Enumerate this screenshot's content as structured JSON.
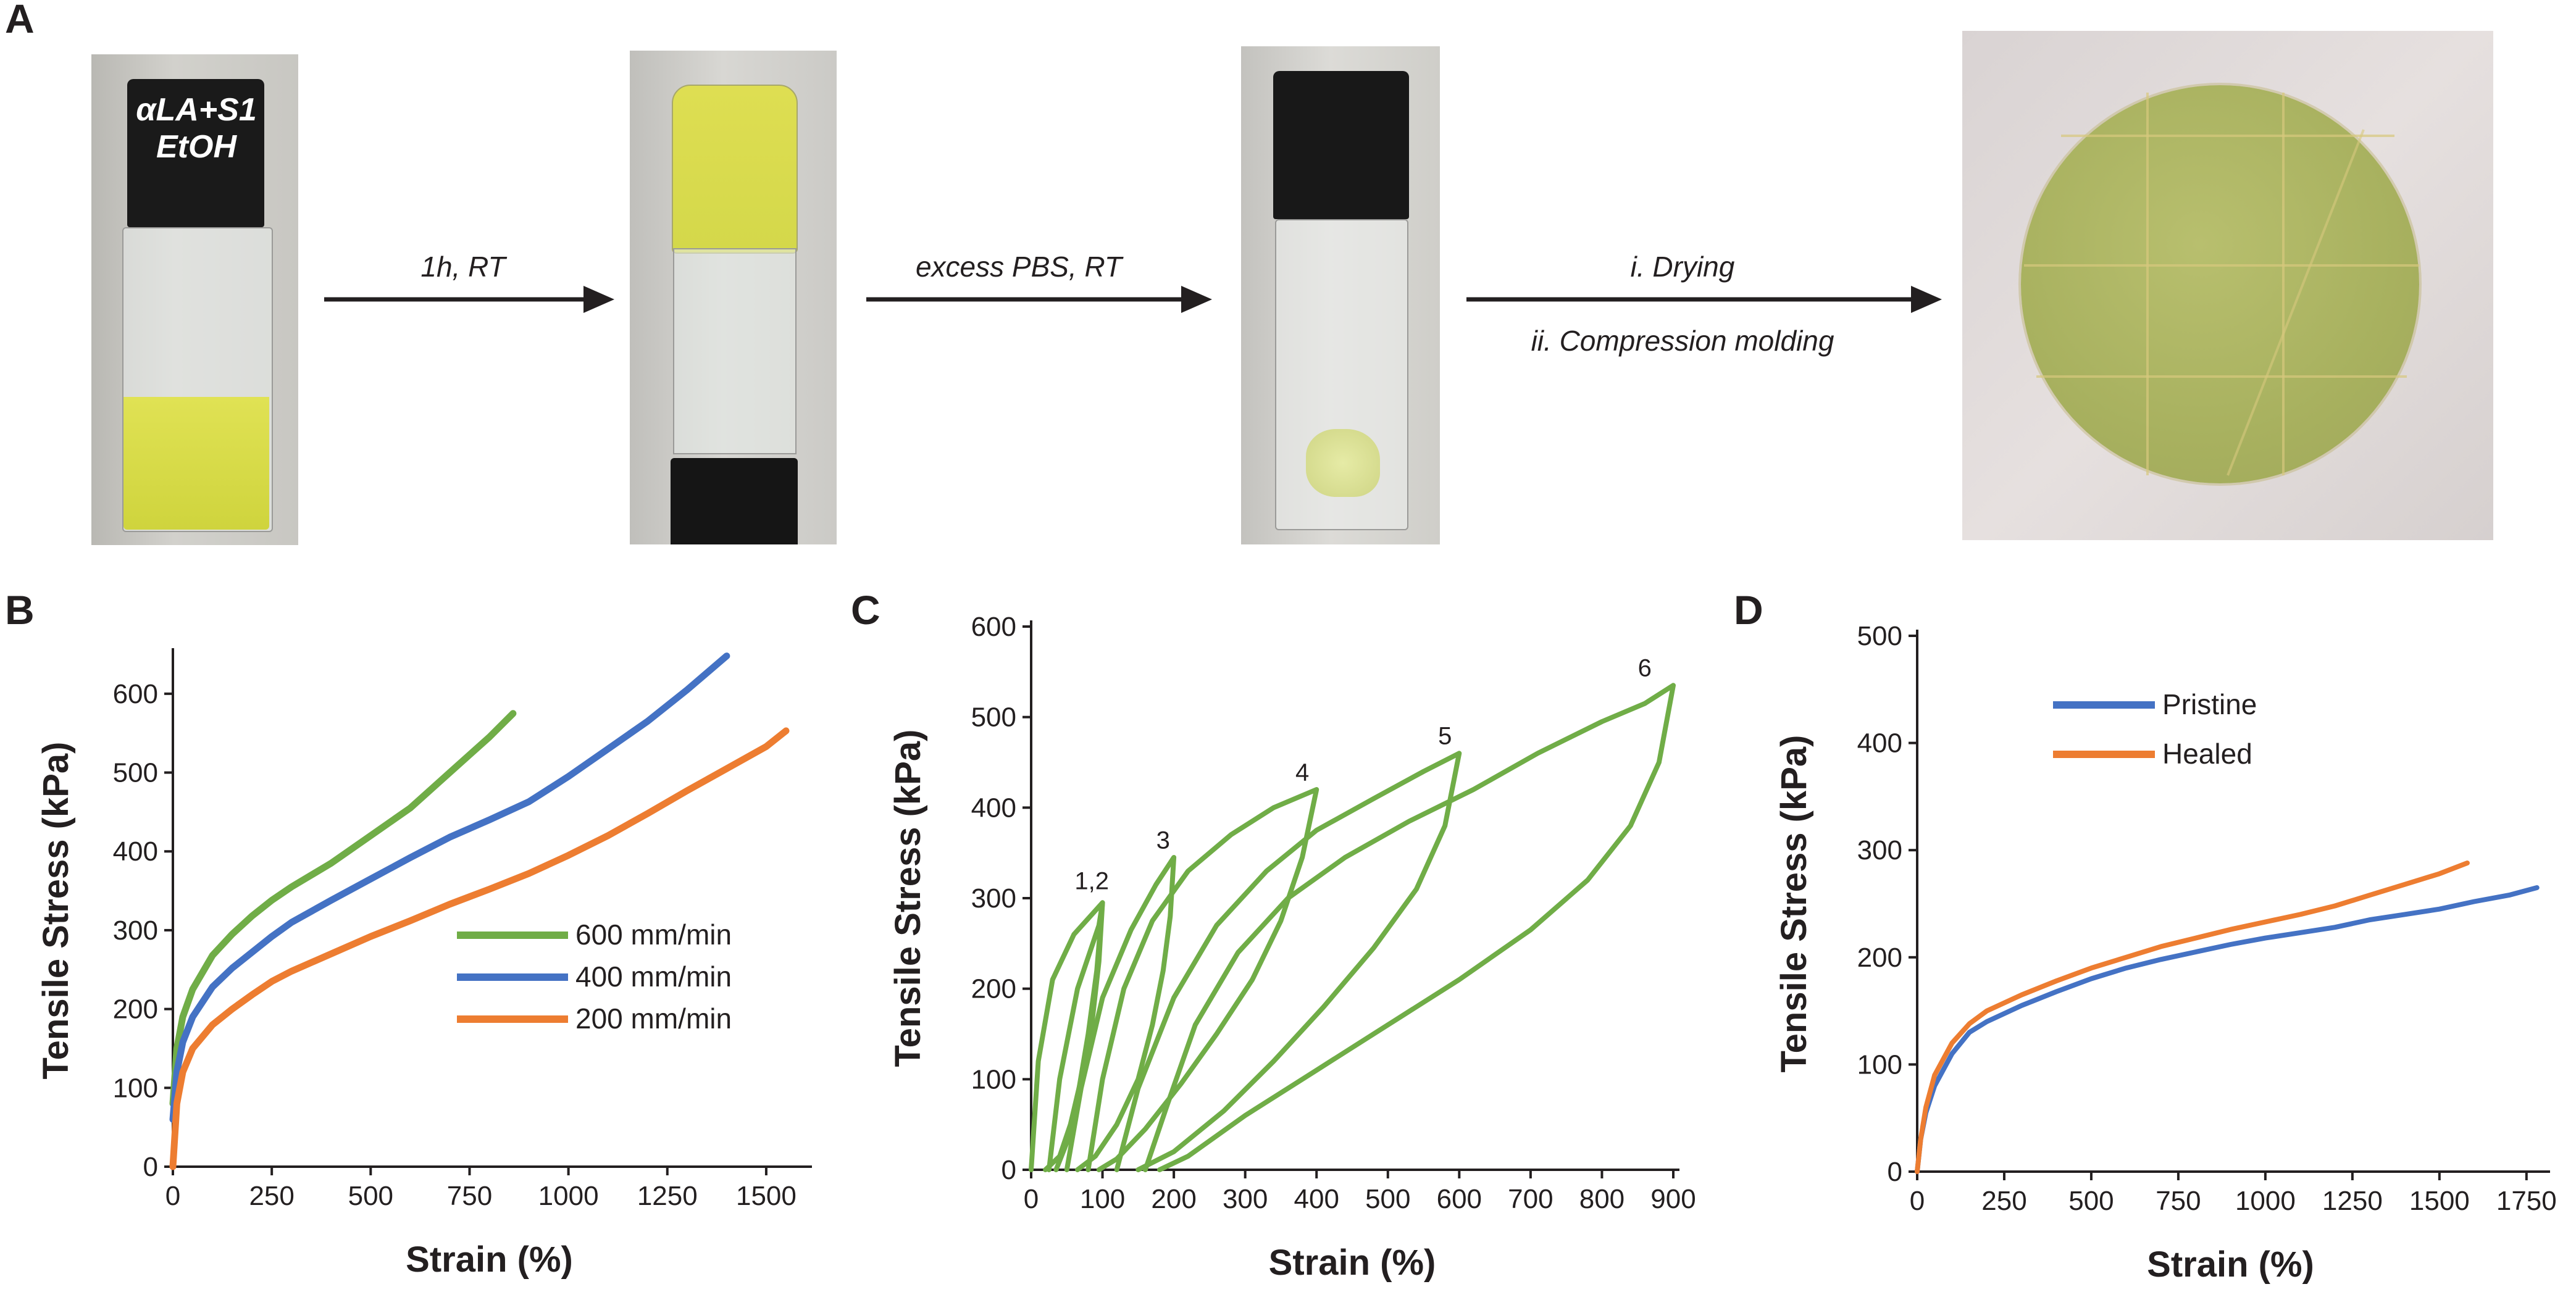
{
  "panels": {
    "a": {
      "letter": "A",
      "vial_label_line1": "αLA+S1",
      "vial_label_line2": "EtOH",
      "step1": "1h, RT",
      "step2": "excess PBS, RT",
      "step3_line1": "i. Drying",
      "step3_line2": "ii. Compression molding"
    },
    "b": {
      "letter": "B"
    },
    "c": {
      "letter": "C"
    },
    "d": {
      "letter": "D"
    }
  },
  "colors": {
    "green": "#70ad47",
    "blue": "#4472c4",
    "orange": "#ed7d31",
    "axis": "#231f20"
  },
  "chart_data": [
    {
      "type": "line",
      "xlabel": "Strain (%)",
      "ylabel": "Tensile Stress (kPa)",
      "xlim": [
        0,
        1600
      ],
      "ylim": [
        0,
        650
      ],
      "xticks": [
        0,
        250,
        500,
        750,
        1000,
        1250,
        1500
      ],
      "yticks": [
        0,
        100,
        200,
        300,
        400,
        500,
        600
      ],
      "legend_position": "center-right",
      "series": [
        {
          "name": "600 mm/min",
          "color": "#70ad47",
          "x": [
            0,
            10,
            25,
            50,
            100,
            150,
            200,
            250,
            300,
            400,
            500,
            600,
            700,
            800,
            860
          ],
          "y": [
            80,
            150,
            190,
            225,
            268,
            295,
            318,
            338,
            355,
            385,
            420,
            455,
            500,
            545,
            575
          ]
        },
        {
          "name": "400 mm/min",
          "color": "#4472c4",
          "x": [
            0,
            10,
            25,
            50,
            100,
            150,
            200,
            250,
            300,
            400,
            500,
            600,
            700,
            800,
            900,
            1000,
            1100,
            1200,
            1300,
            1400
          ],
          "y": [
            60,
            120,
            158,
            190,
            228,
            252,
            272,
            292,
            310,
            338,
            365,
            392,
            418,
            440,
            463,
            495,
            530,
            565,
            605,
            648
          ]
        },
        {
          "name": "200 mm/min",
          "color": "#ed7d31",
          "x": [
            0,
            5,
            10,
            25,
            50,
            100,
            150,
            200,
            250,
            300,
            400,
            500,
            600,
            700,
            800,
            900,
            1000,
            1100,
            1200,
            1300,
            1400,
            1500,
            1550
          ],
          "y": [
            0,
            40,
            80,
            120,
            150,
            180,
            200,
            218,
            235,
            248,
            270,
            292,
            312,
            333,
            352,
            372,
            395,
            420,
            448,
            477,
            505,
            533,
            553
          ]
        }
      ]
    },
    {
      "type": "line",
      "xlabel": "Strain (%)",
      "ylabel": "Tensile Stress (kPa)",
      "xlim": [
        0,
        900
      ],
      "ylim": [
        0,
        600
      ],
      "xticks": [
        0,
        100,
        200,
        300,
        400,
        500,
        600,
        700,
        800,
        900
      ],
      "yticks": [
        0,
        100,
        200,
        300,
        400,
        500,
        600
      ],
      "annotations": [
        "1,2",
        "3",
        "4",
        "5",
        "6"
      ],
      "series": [
        {
          "label": "1",
          "color": "#70ad47",
          "x": [
            0,
            10,
            30,
            60,
            100,
            95,
            85,
            70,
            55,
            40,
            20
          ],
          "y": [
            0,
            120,
            210,
            260,
            295,
            230,
            160,
            100,
            50,
            15,
            0
          ]
        },
        {
          "label": "2",
          "color": "#70ad47",
          "x": [
            25,
            40,
            65,
            95,
            100,
            92,
            80,
            65,
            50,
            35
          ],
          "y": [
            0,
            100,
            200,
            270,
            295,
            220,
            150,
            80,
            30,
            0
          ]
        },
        {
          "label": "3",
          "color": "#70ad47",
          "x": [
            50,
            70,
            100,
            140,
            175,
            200,
            195,
            185,
            170,
            150,
            120,
            90,
            65
          ],
          "y": [
            0,
            90,
            190,
            265,
            315,
            345,
            280,
            220,
            160,
            100,
            50,
            15,
            0
          ]
        },
        {
          "label": "4",
          "color": "#70ad47",
          "x": [
            80,
            100,
            130,
            170,
            220,
            280,
            340,
            400,
            380,
            350,
            310,
            260,
            210,
            160,
            120,
            95
          ],
          "y": [
            0,
            100,
            200,
            275,
            330,
            370,
            400,
            420,
            345,
            275,
            210,
            150,
            95,
            45,
            12,
            0
          ]
        },
        {
          "label": "5",
          "color": "#70ad47",
          "x": [
            120,
            150,
            200,
            260,
            330,
            400,
            480,
            550,
            600,
            580,
            540,
            480,
            410,
            340,
            270,
            200,
            150
          ],
          "y": [
            0,
            90,
            190,
            270,
            330,
            375,
            410,
            440,
            460,
            380,
            310,
            245,
            180,
            120,
            65,
            20,
            0
          ]
        },
        {
          "label": "6",
          "color": "#70ad47",
          "x": [
            160,
            190,
            230,
            290,
            360,
            440,
            530,
            620,
            710,
            800,
            860,
            900,
            880,
            840,
            780,
            700,
            600,
            500,
            400,
            300,
            220,
            180
          ],
          "y": [
            0,
            70,
            160,
            240,
            300,
            345,
            385,
            420,
            460,
            495,
            515,
            535,
            450,
            380,
            320,
            265,
            210,
            160,
            110,
            60,
            15,
            0
          ]
        }
      ]
    },
    {
      "type": "line",
      "xlabel": "Strain (%)",
      "ylabel": "Tensile Stress (kPa)",
      "xlim": [
        0,
        1800
      ],
      "ylim": [
        0,
        500
      ],
      "xticks": [
        0,
        250,
        500,
        750,
        1000,
        1250,
        1500,
        1750
      ],
      "yticks": [
        0,
        100,
        200,
        300,
        400,
        500
      ],
      "legend_position": "top-left",
      "series": [
        {
          "name": "Pristine",
          "color": "#4472c4",
          "x": [
            0,
            10,
            25,
            50,
            100,
            150,
            200,
            300,
            400,
            500,
            600,
            700,
            800,
            900,
            1000,
            1100,
            1200,
            1300,
            1400,
            1500,
            1600,
            1700,
            1780
          ],
          "y": [
            0,
            30,
            55,
            80,
            110,
            130,
            140,
            155,
            168,
            180,
            190,
            198,
            205,
            212,
            218,
            223,
            228,
            235,
            240,
            245,
            252,
            258,
            265
          ]
        },
        {
          "name": "Healed",
          "color": "#ed7d31",
          "x": [
            0,
            10,
            25,
            50,
            100,
            150,
            200,
            300,
            400,
            500,
            600,
            700,
            800,
            900,
            1000,
            1100,
            1200,
            1300,
            1400,
            1500,
            1580
          ],
          "y": [
            0,
            30,
            60,
            90,
            120,
            138,
            150,
            165,
            178,
            190,
            200,
            210,
            218,
            226,
            233,
            240,
            248,
            258,
            268,
            278,
            288
          ]
        }
      ]
    }
  ]
}
